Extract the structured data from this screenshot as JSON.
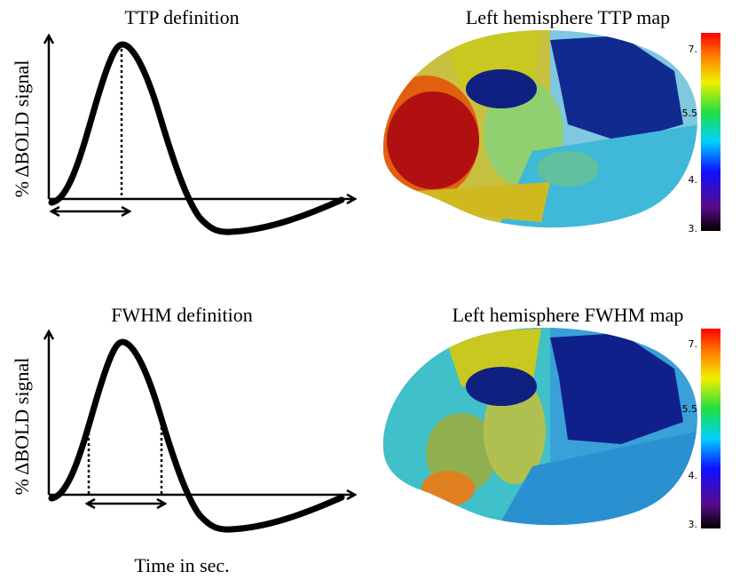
{
  "panels": [
    {
      "title": "TTP definition",
      "y_label": "% ΔBOLD signal"
    },
    {
      "title": "FWHM definition",
      "y_label": "% ΔBOLD signal"
    }
  ],
  "x_label": "Time in sec.",
  "maps": [
    {
      "title": "Left hemisphere TTP map",
      "colorbar_labels": [
        "7.",
        "5.5",
        "4.",
        "3."
      ]
    },
    {
      "title": "Left hemisphere FWHM map",
      "colorbar_labels": [
        "7.",
        "5.5",
        "4.",
        "3."
      ]
    }
  ]
}
